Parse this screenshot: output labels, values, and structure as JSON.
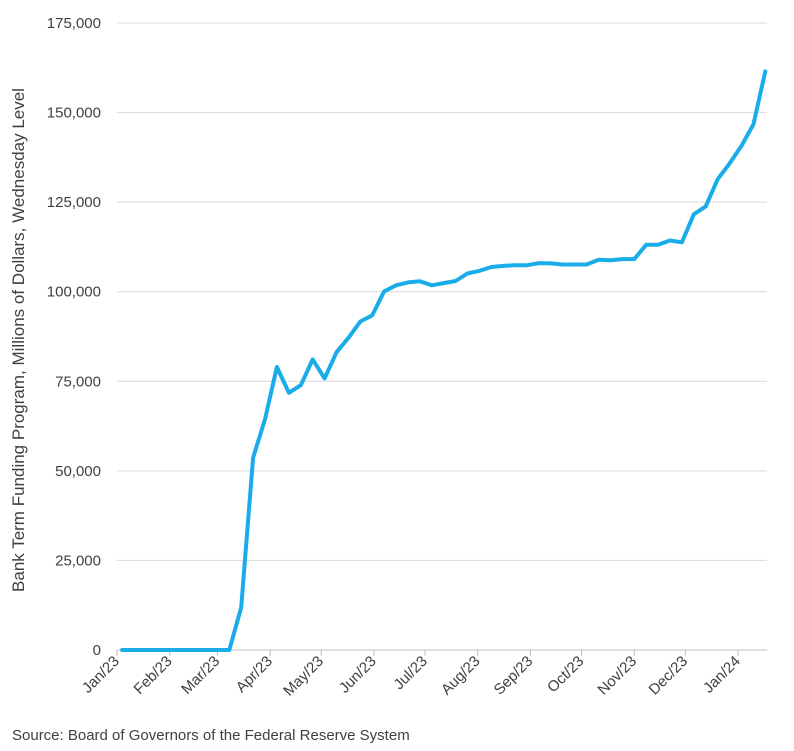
{
  "chart_data": {
    "type": "line",
    "title": "",
    "xlabel": "",
    "ylabel": "Bank Term Funding Program, Millions of Dollars, Wednesday Level",
    "ylim": [
      0,
      175000
    ],
    "yticks": [
      0,
      25000,
      50000,
      75000,
      100000,
      125000,
      150000,
      175000
    ],
    "ytick_labels": [
      "0",
      "25,000",
      "50,000",
      "75,000",
      "100,000",
      "125,000",
      "150,000",
      "175,000"
    ],
    "xlim": [
      "2023-01-01",
      "2024-01-18"
    ],
    "xticks": [
      "2023-01-01",
      "2023-02-01",
      "2023-03-01",
      "2023-04-01",
      "2023-05-01",
      "2023-06-01",
      "2023-07-01",
      "2023-08-01",
      "2023-09-01",
      "2023-10-01",
      "2023-11-01",
      "2023-12-01",
      "2024-01-01"
    ],
    "xtick_labels": [
      "Jan/23",
      "Feb/23",
      "Mar/23",
      "Apr/23",
      "May/23",
      "Jun/23",
      "Jul/23",
      "Aug/23",
      "Sep/23",
      "Oct/23",
      "Nov/23",
      "Dec/23",
      "Jan/24"
    ],
    "grid": "horizontal",
    "series_color": "#1aace8",
    "series": [
      {
        "x": [
          "2023-01-04",
          "2023-01-11",
          "2023-01-18",
          "2023-01-25",
          "2023-02-01",
          "2023-02-08",
          "2023-02-15",
          "2023-02-22",
          "2023-03-01",
          "2023-03-08",
          "2023-03-15",
          "2023-03-22",
          "2023-03-29",
          "2023-04-05",
          "2023-04-12",
          "2023-04-19",
          "2023-04-26",
          "2023-05-03",
          "2023-05-10",
          "2023-05-17",
          "2023-05-24",
          "2023-05-31",
          "2023-06-07",
          "2023-06-14",
          "2023-06-21",
          "2023-06-28",
          "2023-07-05",
          "2023-07-12",
          "2023-07-19",
          "2023-07-26",
          "2023-08-02",
          "2023-08-09",
          "2023-08-16",
          "2023-08-23",
          "2023-08-30",
          "2023-09-06",
          "2023-09-13",
          "2023-09-20",
          "2023-09-27",
          "2023-10-04",
          "2023-10-11",
          "2023-10-18",
          "2023-10-25",
          "2023-11-01",
          "2023-11-08",
          "2023-11-15",
          "2023-11-22",
          "2023-11-29",
          "2023-12-06",
          "2023-12-13",
          "2023-12-20",
          "2023-12-27",
          "2024-01-03",
          "2024-01-10",
          "2024-01-17"
        ],
        "values": [
          0,
          0,
          0,
          0,
          0,
          0,
          0,
          0,
          0,
          0,
          11900,
          53700,
          64400,
          79000,
          71800,
          73900,
          81100,
          75800,
          83100,
          87100,
          91700,
          93400,
          100100,
          101800,
          102600,
          102900,
          101800,
          102400,
          103000,
          105100,
          105800,
          106900,
          107200,
          107400,
          107400,
          108000,
          107900,
          107600,
          107600,
          107600,
          108900,
          108800,
          109100,
          109100,
          113100,
          113100,
          114300,
          113800,
          121600,
          123800,
          131400,
          135800,
          140700,
          146700,
          161500
        ]
      }
    ]
  },
  "footer": {
    "source": "Source: Board of Governors of the Federal Reserve System"
  }
}
